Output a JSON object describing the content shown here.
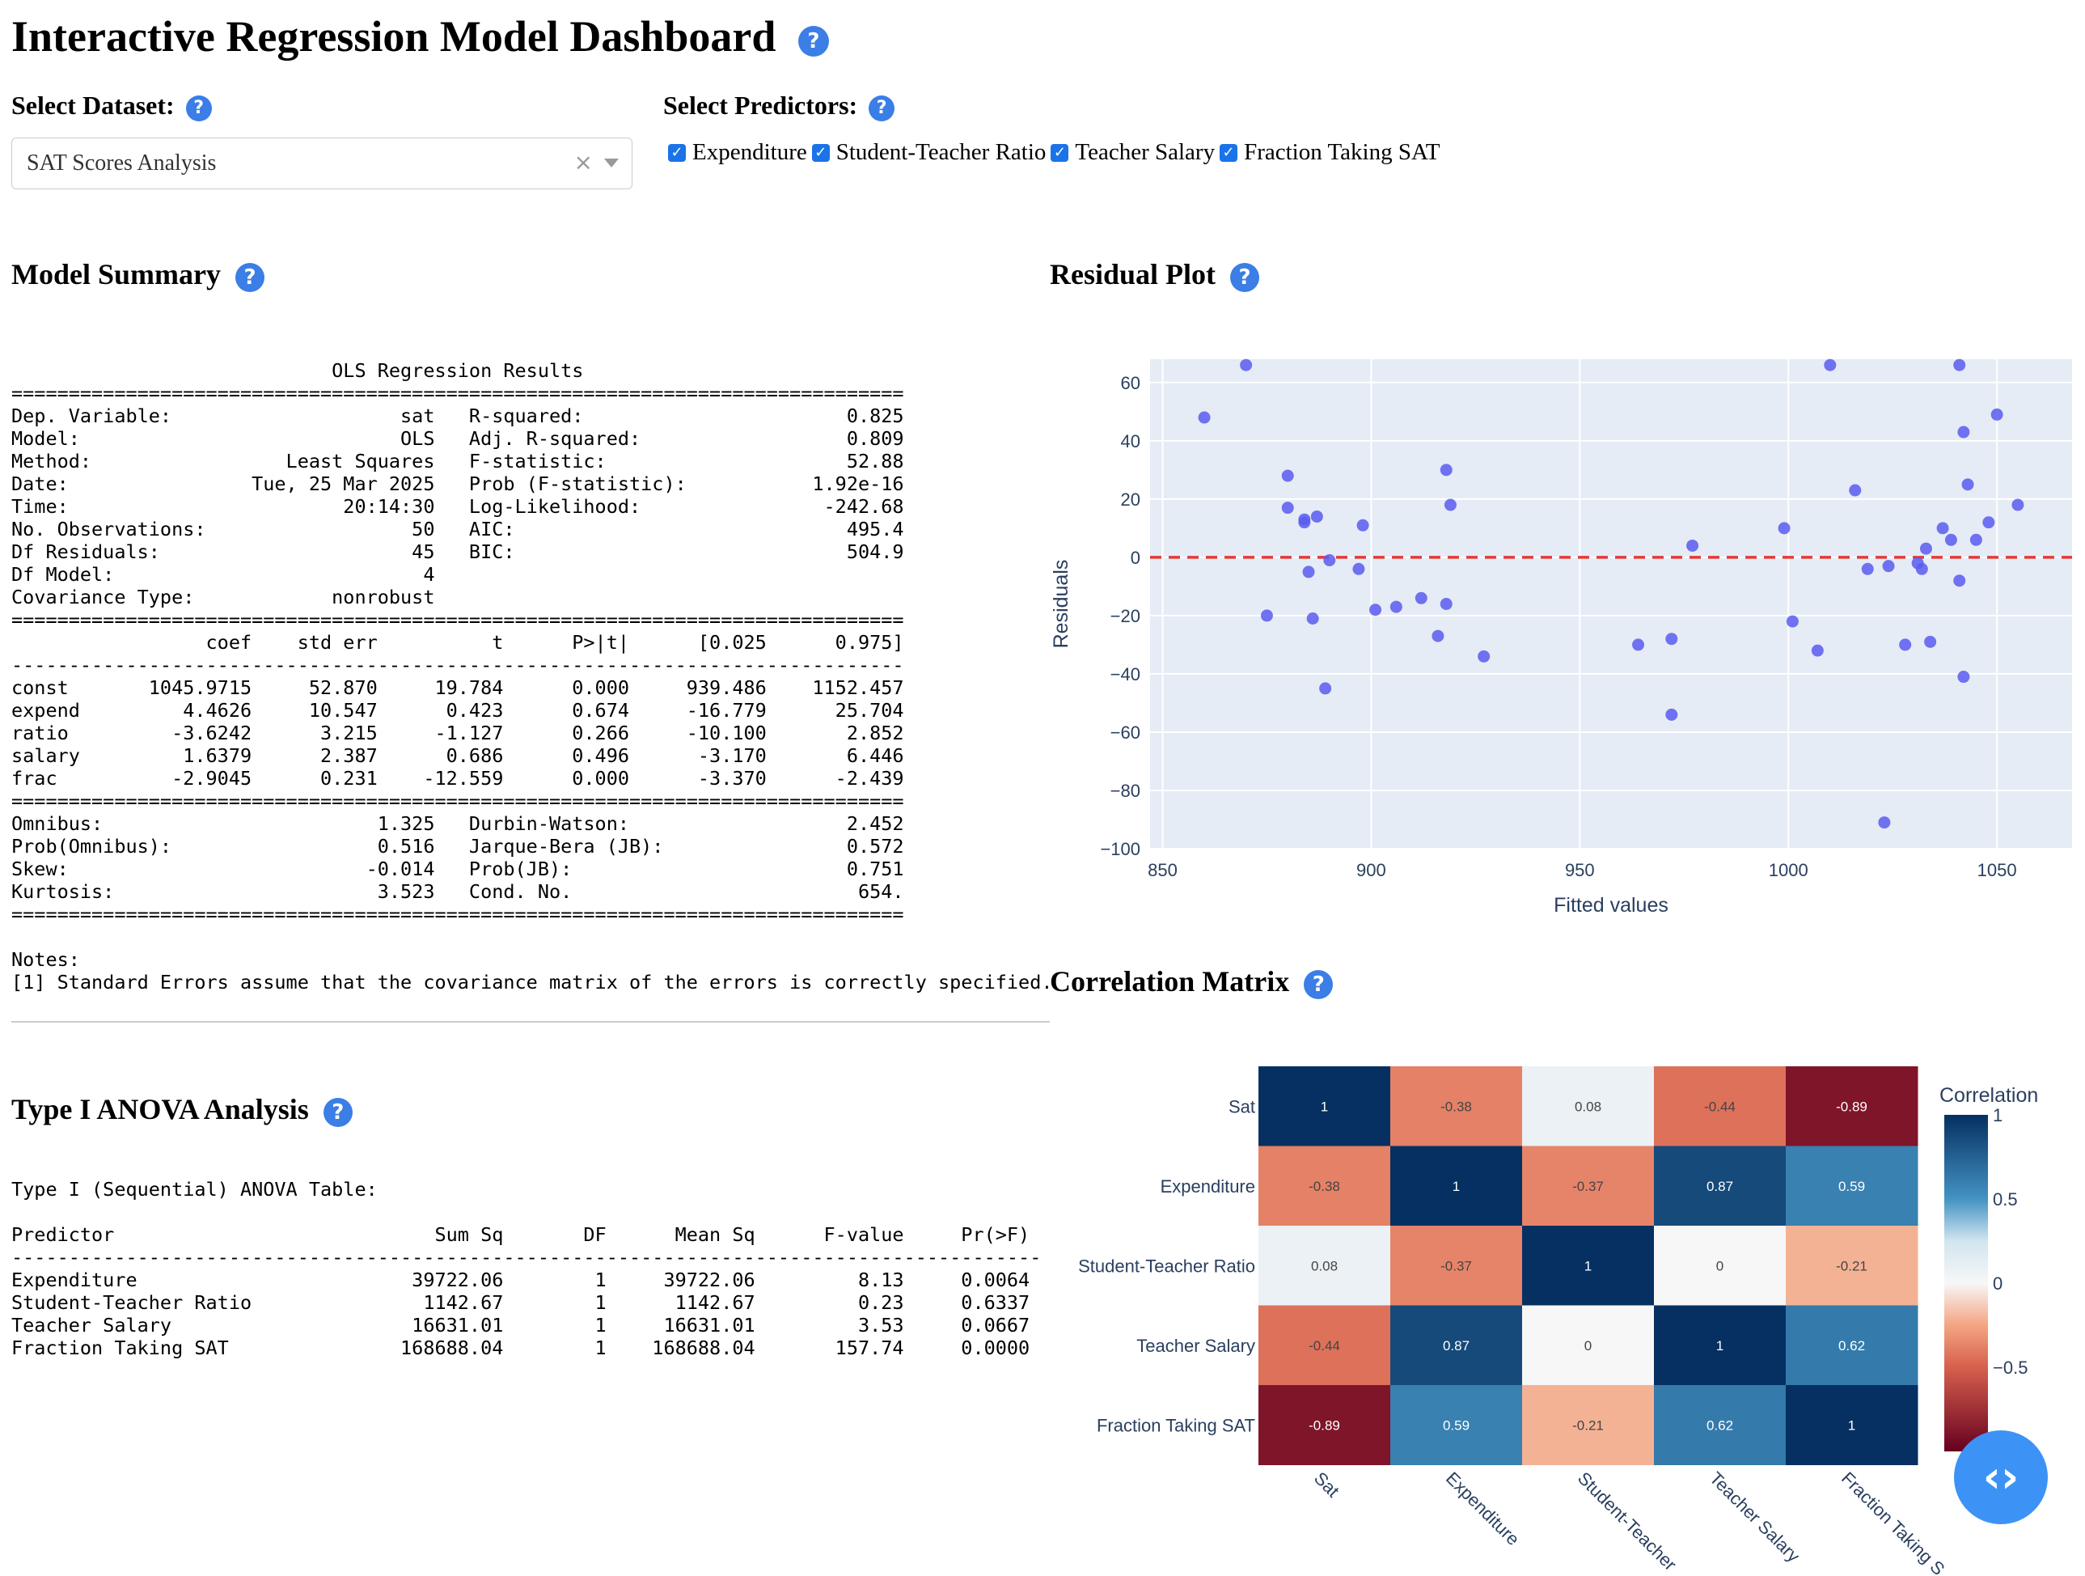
{
  "header": {
    "title": "Interactive Regression Model Dashboard",
    "help_icon": "?"
  },
  "controls": {
    "dataset_label": "Select Dataset:",
    "dataset_value": "SAT Scores Analysis",
    "dataset_clear": "×",
    "predictors_label": "Select Predictors:",
    "predictors": [
      {
        "label": "Expenditure",
        "checked": true
      },
      {
        "label": "Student-Teacher Ratio",
        "checked": true
      },
      {
        "label": "Teacher Salary",
        "checked": true
      },
      {
        "label": "Fraction Taking SAT",
        "checked": true
      }
    ]
  },
  "model_summary": {
    "heading": "Model Summary",
    "text": "                            OLS Regression Results                            \n==============================================================================\nDep. Variable:                    sat   R-squared:                       0.825\nModel:                            OLS   Adj. R-squared:                  0.809\nMethod:                 Least Squares   F-statistic:                     52.88\nDate:                Tue, 25 Mar 2025   Prob (F-statistic):           1.92e-16\nTime:                        20:14:30   Log-Likelihood:                -242.68\nNo. Observations:                  50   AIC:                             495.4\nDf Residuals:                      45   BIC:                             504.9\nDf Model:                           4                                         \nCovariance Type:            nonrobust                                         \n==============================================================================\n                 coef    std err          t      P>|t|      [0.025      0.975]\n------------------------------------------------------------------------------\nconst       1045.9715     52.870     19.784      0.000     939.486    1152.457\nexpend         4.4626     10.547      0.423      0.674     -16.779      25.704\nratio         -3.6242      3.215     -1.127      0.266     -10.100       2.852\nsalary         1.6379      2.387      0.686      0.496      -3.170       6.446\nfrac          -2.9045      0.231    -12.559      0.000      -3.370      -2.439\n==============================================================================\nOmnibus:                        1.325   Durbin-Watson:                   2.452\nProb(Omnibus):                  0.516   Jarque-Bera (JB):                0.572\nSkew:                          -0.014   Prob(JB):                        0.751\nKurtosis:                       3.523   Cond. No.                         654.\n==============================================================================\n\nNotes:\n[1] Standard Errors assume that the covariance matrix of the errors is correctly specified."
  },
  "anova": {
    "heading": "Type I ANOVA Analysis",
    "text": "Type I (Sequential) ANOVA Table:\n\nPredictor                            Sum Sq       DF      Mean Sq      F-value     Pr(>F)\n------------------------------------------------------------------------------------------\nExpenditure                        39722.06        1     39722.06         8.13     0.0064\nStudent-Teacher Ratio               1142.67        1      1142.67         0.23     0.6337\nTeacher Salary                     16631.01        1     16631.01         3.53     0.0667\nFraction Taking SAT               168688.04        1    168688.04       157.74     0.0000"
  },
  "residual_plot": {
    "heading": "Residual Plot",
    "chart_data": {
      "type": "scatter",
      "xlabel": "Fitted values",
      "ylabel": "Residuals",
      "xlim": [
        847,
        1068
      ],
      "ylim": [
        -100,
        68
      ],
      "xticks": [
        850,
        900,
        950,
        1000,
        1050
      ],
      "yticks": [
        60,
        40,
        20,
        0,
        -20,
        -40,
        -60,
        -80,
        -100
      ],
      "ytick_labels": [
        "60",
        "40",
        "20",
        "0",
        "−20",
        "−40",
        "−60",
        "−80",
        "−100"
      ],
      "reference_line": {
        "y": 0,
        "style": "dashed",
        "color": "#e53935"
      },
      "point_color": "#5b5cf0",
      "points": [
        [
          860,
          48
        ],
        [
          870,
          66
        ],
        [
          875,
          -20
        ],
        [
          880,
          17
        ],
        [
          880,
          28
        ],
        [
          884,
          12
        ],
        [
          884,
          13
        ],
        [
          885,
          -5
        ],
        [
          886,
          -21
        ],
        [
          887,
          14
        ],
        [
          889,
          -45
        ],
        [
          890,
          -1
        ],
        [
          897,
          -4
        ],
        [
          898,
          11
        ],
        [
          901,
          -18
        ],
        [
          906,
          -17
        ],
        [
          912,
          -14
        ],
        [
          916,
          -27
        ],
        [
          918,
          -16
        ],
        [
          918,
          30
        ],
        [
          919,
          18
        ],
        [
          927,
          -34
        ],
        [
          964,
          -30
        ],
        [
          972,
          -54
        ],
        [
          972,
          -28
        ],
        [
          977,
          4
        ],
        [
          999,
          10
        ],
        [
          1001,
          -22
        ],
        [
          1007,
          -32
        ],
        [
          1010,
          66
        ],
        [
          1016,
          23
        ],
        [
          1019,
          -4
        ],
        [
          1023,
          -91
        ],
        [
          1024,
          -3
        ],
        [
          1028,
          -30
        ],
        [
          1031,
          -2
        ],
        [
          1032,
          -4
        ],
        [
          1033,
          3
        ],
        [
          1034,
          -29
        ],
        [
          1037,
          10
        ],
        [
          1039,
          6
        ],
        [
          1041,
          66
        ],
        [
          1041,
          -8
        ],
        [
          1042,
          43
        ],
        [
          1042,
          -41
        ],
        [
          1043,
          25
        ],
        [
          1045,
          6
        ],
        [
          1048,
          12
        ],
        [
          1050,
          49
        ],
        [
          1055,
          18
        ]
      ]
    }
  },
  "correlation": {
    "heading": "Correlation Matrix",
    "chart_data": {
      "type": "heatmap",
      "row_labels": [
        "Sat",
        "Expenditure",
        "Student-Teacher Ratio",
        "Teacher Salary",
        "Fraction Taking SAT"
      ],
      "col_labels": [
        "Sat",
        "Expenditure",
        "Student-Teacher",
        "Teacher Salary",
        "Fraction Taking S"
      ],
      "values": [
        [
          1,
          -0.38,
          0.08,
          -0.44,
          -0.89
        ],
        [
          -0.38,
          1,
          -0.37,
          0.87,
          0.59
        ],
        [
          0.08,
          -0.37,
          1,
          0,
          -0.21
        ],
        [
          -0.44,
          0.87,
          0,
          1,
          0.62
        ],
        [
          -0.89,
          0.59,
          -0.21,
          0.62,
          1
        ]
      ],
      "colorbar": {
        "title": "Correlation",
        "ticks": [
          1,
          0.5,
          0,
          -0.5
        ],
        "tick_labels": [
          "1",
          "0.5",
          "0",
          "−0.5"
        ]
      }
    }
  },
  "fab": {
    "icon": "code-icon",
    "glyph": "‹›"
  }
}
